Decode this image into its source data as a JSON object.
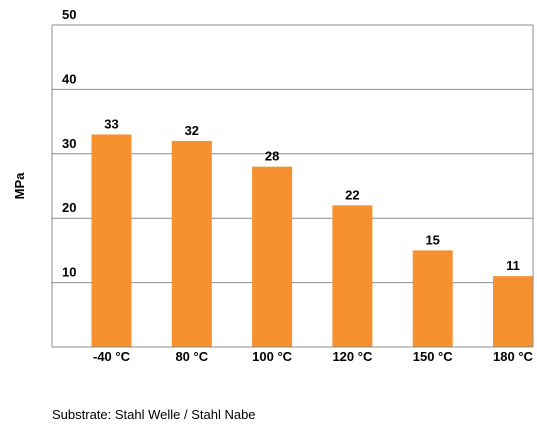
{
  "chart_data": {
    "type": "bar",
    "categories": [
      "-40 °C",
      "80 °C",
      "100 °C",
      "120 °C",
      "150 °C",
      "180 °C"
    ],
    "values": [
      33,
      32,
      28,
      22,
      15,
      11
    ],
    "data_labels": [
      "33",
      "32",
      "28",
      "22",
      "15",
      "11"
    ],
    "yticks": [
      "10",
      "20",
      "30",
      "40",
      "50"
    ],
    "ylabel": "MPa",
    "xlabel": "",
    "ylim": [
      0,
      50
    ],
    "grid": true,
    "bar_color": "#f7902f"
  },
  "footnote": "Substrate: Stahl Welle / Stahl Nabe"
}
